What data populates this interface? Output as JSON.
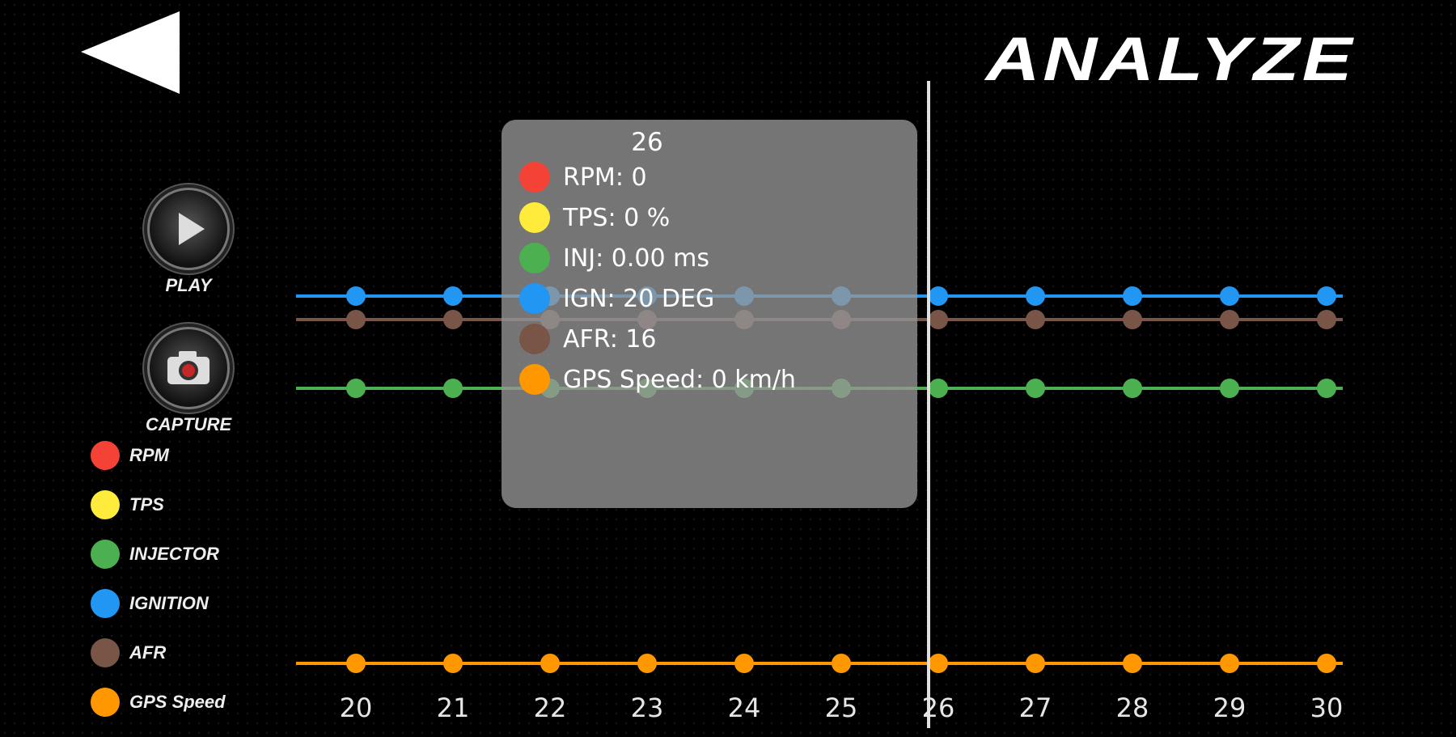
{
  "header": {
    "title": "ANALYZE"
  },
  "controls": {
    "play_label": "PLAY",
    "capture_label": "CAPTURE"
  },
  "legend": [
    {
      "label": "RPM",
      "color": "#f44336"
    },
    {
      "label": "TPS",
      "color": "#ffeb3b"
    },
    {
      "label": "INJECTOR",
      "color": "#4caf50"
    },
    {
      "label": "IGNITION",
      "color": "#2196f3"
    },
    {
      "label": "AFR",
      "color": "#795548"
    },
    {
      "label": "GPS Speed",
      "color": "#ff9800"
    }
  ],
  "tooltip": {
    "x": "26",
    "rows": [
      {
        "text": "RPM: 0",
        "color": "#f44336"
      },
      {
        "text": "TPS: 0 %",
        "color": "#ffeb3b"
      },
      {
        "text": "INJ: 0.00 ms",
        "color": "#4caf50"
      },
      {
        "text": "IGN: 20 DEG",
        "color": "#2196f3"
      },
      {
        "text": "AFR: 16",
        "color": "#795548"
      },
      {
        "text": "GPS Speed: 0 km/h",
        "color": "#ff9800"
      }
    ]
  },
  "chart_data": {
    "type": "line",
    "x": [
      20,
      21,
      22,
      23,
      24,
      25,
      26,
      27,
      28,
      29,
      30
    ],
    "xlabel": "",
    "ylabel": "",
    "cursor_x": 26,
    "grid": true,
    "series": [
      {
        "name": "IGNITION",
        "color": "#2196f3",
        "values": [
          20,
          20,
          20,
          20,
          20,
          20,
          20,
          20,
          20,
          20,
          20
        ]
      },
      {
        "name": "AFR",
        "color": "#795548",
        "values": [
          16,
          16,
          16,
          16,
          16,
          16,
          16,
          16,
          16,
          16,
          16
        ]
      },
      {
        "name": "INJECTOR",
        "color": "#4caf50",
        "values": [
          0,
          0,
          0,
          0,
          0,
          0,
          0,
          0,
          0,
          0,
          0
        ]
      },
      {
        "name": "GPS Speed",
        "color": "#ff9800",
        "values": [
          0,
          0,
          0,
          0,
          0,
          0,
          0,
          0,
          0,
          0,
          0
        ]
      }
    ]
  }
}
